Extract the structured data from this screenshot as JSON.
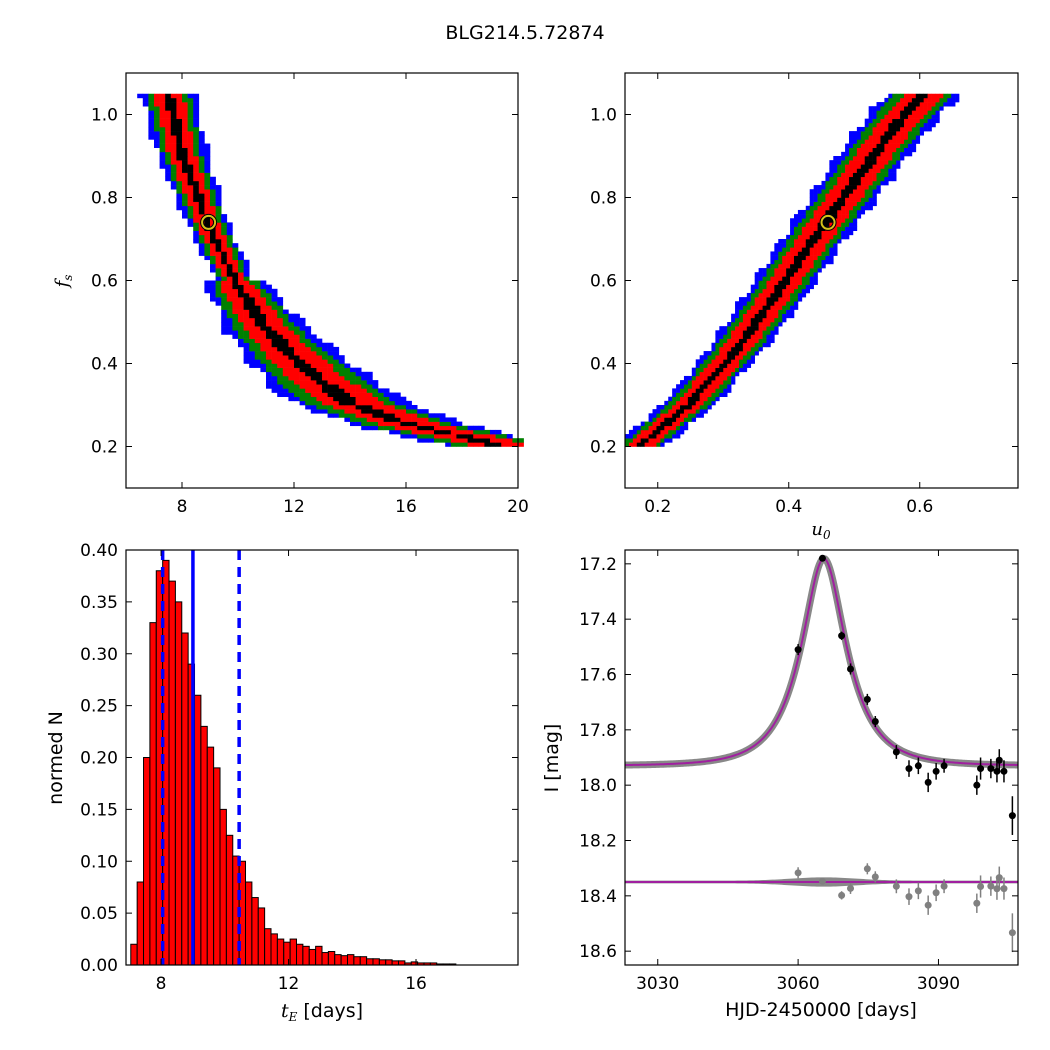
{
  "title": "BLG214.5.72874",
  "chart_data": [
    {
      "type": "heatmap",
      "panel": "top-left",
      "xlabel": "",
      "ylabel": "f_s",
      "xlim": [
        6,
        20
      ],
      "ylim": [
        0.1,
        1.1
      ],
      "xticks": [
        8,
        12,
        16,
        20
      ],
      "yticks": [
        0.2,
        0.4,
        0.6,
        0.8,
        1.0
      ],
      "levels": [
        "black",
        "red",
        "green",
        "blue"
      ],
      "ridge": [
        [
          7.5,
          1.05
        ],
        [
          8.0,
          0.9
        ],
        [
          9.0,
          0.72
        ],
        [
          10.0,
          0.58
        ],
        [
          11.0,
          0.48
        ],
        [
          12.0,
          0.41
        ],
        [
          13.0,
          0.35
        ],
        [
          14.0,
          0.3
        ],
        [
          16.0,
          0.25
        ],
        [
          18.0,
          0.22
        ],
        [
          19.2,
          0.2
        ]
      ],
      "best_fit": {
        "x": 8.95,
        "y": 0.74
      }
    },
    {
      "type": "heatmap",
      "panel": "top-right",
      "xlabel": "u_0",
      "ylabel": "",
      "xlim": [
        0.15,
        0.75
      ],
      "ylim": [
        0.1,
        1.1
      ],
      "xticks": [
        0.2,
        0.4,
        0.6
      ],
      "yticks": [
        0.2,
        0.4,
        0.6,
        0.8,
        1.0
      ],
      "levels": [
        "black",
        "red",
        "green",
        "blue"
      ],
      "ridge": [
        [
          0.175,
          0.2
        ],
        [
          0.25,
          0.3
        ],
        [
          0.32,
          0.43
        ],
        [
          0.38,
          0.56
        ],
        [
          0.44,
          0.7
        ],
        [
          0.49,
          0.81
        ],
        [
          0.54,
          0.92
        ],
        [
          0.58,
          1.0
        ],
        [
          0.61,
          1.05
        ]
      ],
      "best_fit": {
        "x": 0.46,
        "y": 0.74
      }
    },
    {
      "type": "bar",
      "panel": "bottom-left",
      "xlabel": "t_E  [days]",
      "ylabel": "normed N",
      "xlim": [
        6.9,
        19.2
      ],
      "ylim": [
        0,
        0.4
      ],
      "xticks": [
        8,
        12,
        16
      ],
      "yticks": [
        0.0,
        0.05,
        0.1,
        0.15,
        0.2,
        0.25,
        0.3,
        0.35,
        0.4
      ],
      "bin_start": 7.05,
      "bin_width": 0.2,
      "values": [
        0.02,
        0.08,
        0.2,
        0.33,
        0.38,
        0.39,
        0.37,
        0.35,
        0.32,
        0.29,
        0.26,
        0.23,
        0.21,
        0.19,
        0.15,
        0.125,
        0.105,
        0.1,
        0.08,
        0.065,
        0.055,
        0.035,
        0.03,
        0.025,
        0.022,
        0.025,
        0.02,
        0.018,
        0.015,
        0.018,
        0.012,
        0.013,
        0.01,
        0.009,
        0.01,
        0.008,
        0.008,
        0.006,
        0.006,
        0.005,
        0.005,
        0.004,
        0.004,
        0.002,
        0.003,
        0.002,
        0.002,
        0.002,
        0.001,
        0.001,
        0.001,
        0.0,
        0.0,
        0.0,
        0.0,
        0.0,
        0.0,
        0.0,
        0.0,
        0.0,
        0.0
      ],
      "bar_color": "#ff0000",
      "median": 9.0,
      "lower": 8.05,
      "upper": 10.45,
      "line_color": "#0000ff"
    },
    {
      "type": "scatter",
      "panel": "bottom-right",
      "xlabel": "HJD-2450000 [days]",
      "ylabel": "I [mag]",
      "xlim": [
        3023,
        3107
      ],
      "ylim": [
        18.65,
        17.15
      ],
      "xticks": [
        3030,
        3060,
        3090
      ],
      "yticks": [
        17.2,
        17.4,
        17.6,
        17.8,
        18.0,
        18.2,
        18.4,
        18.6
      ],
      "model": {
        "t0": 3065.5,
        "u0": 0.46,
        "tE": 9.0,
        "fs": 0.74,
        "I_base": 17.93,
        "color": "#a020a0"
      },
      "baseline": 18.35,
      "data": [
        {
          "x": 3060.0,
          "y": 17.51,
          "err": 0.02
        },
        {
          "x": 3065.2,
          "y": 17.18,
          "err": 0.01
        },
        {
          "x": 3069.3,
          "y": 17.46,
          "err": 0.015
        },
        {
          "x": 3071.2,
          "y": 17.58,
          "err": 0.02
        },
        {
          "x": 3074.8,
          "y": 17.69,
          "err": 0.02
        },
        {
          "x": 3076.5,
          "y": 17.77,
          "err": 0.02
        },
        {
          "x": 3081.0,
          "y": 17.88,
          "err": 0.025
        },
        {
          "x": 3083.7,
          "y": 17.94,
          "err": 0.03
        },
        {
          "x": 3085.7,
          "y": 17.93,
          "err": 0.03
        },
        {
          "x": 3087.8,
          "y": 17.99,
          "err": 0.035
        },
        {
          "x": 3089.5,
          "y": 17.95,
          "err": 0.03
        },
        {
          "x": 3091.2,
          "y": 17.93,
          "err": 0.025
        },
        {
          "x": 3098.2,
          "y": 18.0,
          "err": 0.035
        },
        {
          "x": 3099.0,
          "y": 17.94,
          "err": 0.04
        },
        {
          "x": 3101.2,
          "y": 17.94,
          "err": 0.035
        },
        {
          "x": 3102.5,
          "y": 17.95,
          "err": 0.04
        },
        {
          "x": 3103.0,
          "y": 17.91,
          "err": 0.04
        },
        {
          "x": 3104.0,
          "y": 17.95,
          "err": 0.04
        },
        {
          "x": 3105.8,
          "y": 18.11,
          "err": 0.07
        }
      ],
      "point_color": "#000000",
      "residual_color": "#808080"
    }
  ]
}
